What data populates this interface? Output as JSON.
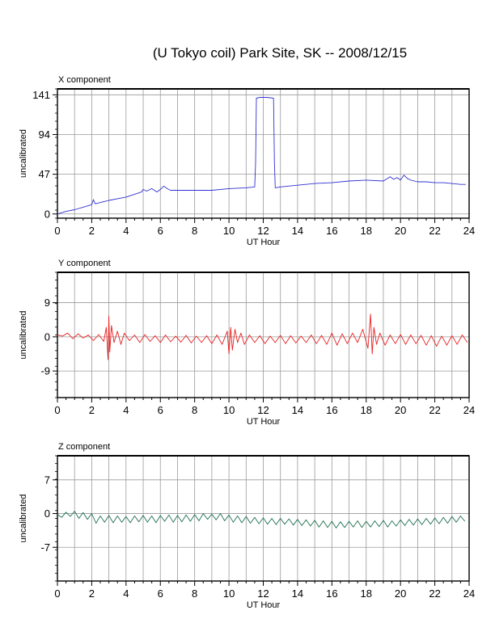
{
  "title": "(U Tokyo coil) Park Site, SK -- 2008/12/15",
  "chart_data": [
    {
      "type": "line",
      "panel_label": "X component",
      "xlabel": "UT Hour",
      "ylabel": "uncalibrated",
      "xlim": [
        0,
        24
      ],
      "ylim": [
        -5,
        148
      ],
      "x_ticks": [
        0,
        2,
        4,
        6,
        8,
        10,
        12,
        14,
        16,
        18,
        20,
        22,
        24
      ],
      "y_ticks": [
        0,
        47,
        94,
        141
      ],
      "color": "#3030d0",
      "series": [
        {
          "x": [
            0,
            0.5,
            1,
            1.5,
            2,
            2.1,
            2.2,
            2.4,
            2.6,
            3,
            3.5,
            4,
            4.3,
            4.6,
            4.9,
            5.0,
            5.2,
            5.5,
            5.8,
            6.0,
            6.2,
            6.4,
            6.6,
            7,
            8,
            9,
            10,
            11,
            11.5,
            11.55,
            11.6,
            11.8,
            12.2,
            12.6,
            12.65,
            12.7,
            13,
            14,
            15,
            16,
            17,
            18,
            19,
            19.4,
            19.6,
            19.8,
            20,
            20.2,
            20.4,
            20.6,
            21,
            21.5,
            22,
            22.5,
            23,
            23.5,
            23.8
          ],
          "values": [
            0,
            3,
            5,
            8,
            11,
            17,
            12,
            13,
            14,
            16,
            18,
            20,
            22,
            24,
            26,
            29,
            27,
            30,
            26,
            29,
            33,
            30,
            28,
            28,
            28,
            28,
            30,
            31,
            32,
            60,
            137,
            138,
            138,
            137,
            60,
            31,
            32,
            34,
            36,
            37,
            39,
            40,
            39,
            44,
            41,
            43,
            40,
            46,
            42,
            40,
            38,
            38,
            37,
            37,
            36,
            35,
            35
          ]
        }
      ]
    },
    {
      "type": "line",
      "panel_label": "Y component",
      "xlabel": "UT Hour",
      "ylabel": "uncalibrated",
      "xlim": [
        0,
        24
      ],
      "ylim": [
        -16,
        17
      ],
      "x_ticks": [
        0,
        2,
        4,
        6,
        8,
        10,
        12,
        14,
        16,
        18,
        20,
        22,
        24
      ],
      "y_ticks": [
        -9,
        0,
        9
      ],
      "color": "#e82020",
      "series": [
        {
          "x": [
            0,
            0.3,
            0.6,
            0.9,
            1.2,
            1.5,
            1.8,
            2.1,
            2.4,
            2.7,
            2.85,
            2.95,
            3.0,
            3.05,
            3.15,
            3.3,
            3.5,
            3.7,
            3.9,
            4.2,
            4.5,
            4.8,
            5.1,
            5.4,
            5.7,
            6.0,
            6.3,
            6.6,
            6.9,
            7.2,
            7.5,
            7.8,
            8.1,
            8.4,
            8.7,
            9.0,
            9.3,
            9.6,
            9.9,
            10.0,
            10.1,
            10.2,
            10.35,
            10.5,
            10.7,
            10.9,
            11.2,
            11.5,
            11.8,
            12.1,
            12.4,
            12.7,
            13.0,
            13.3,
            13.6,
            13.9,
            14.2,
            14.5,
            14.8,
            15.1,
            15.4,
            15.7,
            16.0,
            16.3,
            16.6,
            16.9,
            17.2,
            17.5,
            17.8,
            18.1,
            18.25,
            18.35,
            18.45,
            18.6,
            18.8,
            19.1,
            19.4,
            19.7,
            20.0,
            20.3,
            20.6,
            20.9,
            21.2,
            21.5,
            21.8,
            22.1,
            22.4,
            22.7,
            23.0,
            23.3,
            23.6,
            23.9
          ],
          "values": [
            0.5,
            0.2,
            1.0,
            -0.5,
            0.8,
            -0.3,
            0.5,
            -1.0,
            0.6,
            -1.2,
            2.5,
            -6.0,
            5.5,
            -4.0,
            3.0,
            -1.5,
            1.5,
            -2.0,
            1.0,
            -1.0,
            0.5,
            -1.5,
            0.6,
            -1.2,
            0.3,
            -1.5,
            0.5,
            -1.3,
            0.2,
            -1.4,
            0.4,
            -1.6,
            0.2,
            -1.5,
            0.3,
            -1.8,
            0.5,
            -2.0,
            1.5,
            -4.5,
            2.5,
            -3.5,
            2.0,
            -1.5,
            1.0,
            -2.0,
            0.5,
            -1.5,
            0.3,
            -1.8,
            0.2,
            -1.5,
            0.4,
            -1.8,
            0.3,
            -1.6,
            0.2,
            -1.5,
            0.5,
            -1.8,
            0.4,
            -2.0,
            1.0,
            -2.2,
            0.8,
            -1.8,
            1.0,
            -1.5,
            2.0,
            -3.0,
            6.0,
            -4.5,
            2.5,
            -2.0,
            1.0,
            -2.2,
            0.5,
            -1.8,
            0.6,
            -2.0,
            0.5,
            -1.8,
            0.4,
            -2.2,
            0.3,
            -2.5,
            0.2,
            -2.2,
            0.3,
            -2.0,
            0.5,
            -1.5
          ]
        }
      ]
    },
    {
      "type": "line",
      "panel_label": "Z component",
      "xlabel": "UT Hour",
      "ylabel": "uncalibrated",
      "xlim": [
        0,
        24
      ],
      "ylim": [
        -14,
        12
      ],
      "x_ticks": [
        0,
        2,
        4,
        6,
        8,
        10,
        12,
        14,
        16,
        18,
        20,
        22,
        24
      ],
      "y_ticks": [
        -7,
        0,
        7
      ],
      "color": "#207050",
      "series": [
        {
          "x": [
            0,
            0.25,
            0.5,
            0.75,
            1.0,
            1.25,
            1.5,
            1.75,
            2.0,
            2.25,
            2.5,
            2.75,
            3.0,
            3.25,
            3.5,
            3.75,
            4.0,
            4.25,
            4.5,
            4.75,
            5.0,
            5.25,
            5.5,
            5.75,
            6.0,
            6.25,
            6.5,
            6.75,
            7.0,
            7.25,
            7.5,
            7.75,
            8.0,
            8.25,
            8.5,
            8.75,
            9.0,
            9.25,
            9.5,
            9.75,
            10.0,
            10.25,
            10.5,
            10.75,
            11.0,
            11.25,
            11.5,
            11.75,
            12.0,
            12.25,
            12.5,
            12.75,
            13.0,
            13.25,
            13.5,
            13.75,
            14.0,
            14.25,
            14.5,
            14.75,
            15.0,
            15.25,
            15.5,
            15.75,
            16.0,
            16.25,
            16.5,
            16.75,
            17.0,
            17.25,
            17.5,
            17.75,
            18.0,
            18.25,
            18.5,
            18.75,
            19.0,
            19.25,
            19.5,
            19.75,
            20.0,
            20.25,
            20.5,
            20.75,
            21.0,
            21.25,
            21.5,
            21.75,
            22.0,
            22.25,
            22.5,
            22.75,
            23.0,
            23.25,
            23.5,
            23.75
          ],
          "values": [
            -0.2,
            -0.8,
            0.3,
            -0.6,
            0.5,
            -1.0,
            0.2,
            -1.2,
            0.0,
            -2.0,
            -0.5,
            -1.8,
            -0.4,
            -1.9,
            -0.5,
            -1.8,
            -0.6,
            -1.9,
            -0.5,
            -1.7,
            -0.4,
            -1.8,
            -0.5,
            -1.9,
            -0.4,
            -1.6,
            -0.3,
            -1.8,
            -0.4,
            -1.7,
            -0.3,
            -1.6,
            -0.2,
            -1.5,
            0.0,
            -1.2,
            -0.1,
            -1.3,
            0.0,
            -1.5,
            -0.3,
            -1.8,
            -0.5,
            -1.9,
            -0.6,
            -2.0,
            -0.8,
            -2.1,
            -0.9,
            -2.2,
            -1.0,
            -2.3,
            -1.0,
            -2.2,
            -1.1,
            -2.4,
            -1.2,
            -2.5,
            -1.3,
            -2.6,
            -1.4,
            -2.8,
            -1.5,
            -2.9,
            -1.6,
            -3.0,
            -1.7,
            -2.9,
            -1.6,
            -2.8,
            -1.5,
            -2.9,
            -1.6,
            -2.8,
            -1.5,
            -2.7,
            -1.4,
            -2.8,
            -1.5,
            -2.6,
            -1.3,
            -2.5,
            -1.2,
            -2.4,
            -1.1,
            -2.3,
            -1.0,
            -2.2,
            -0.9,
            -2.1,
            -0.8,
            -2.0,
            -0.6,
            -1.8,
            -0.5,
            -1.6
          ]
        }
      ]
    }
  ]
}
